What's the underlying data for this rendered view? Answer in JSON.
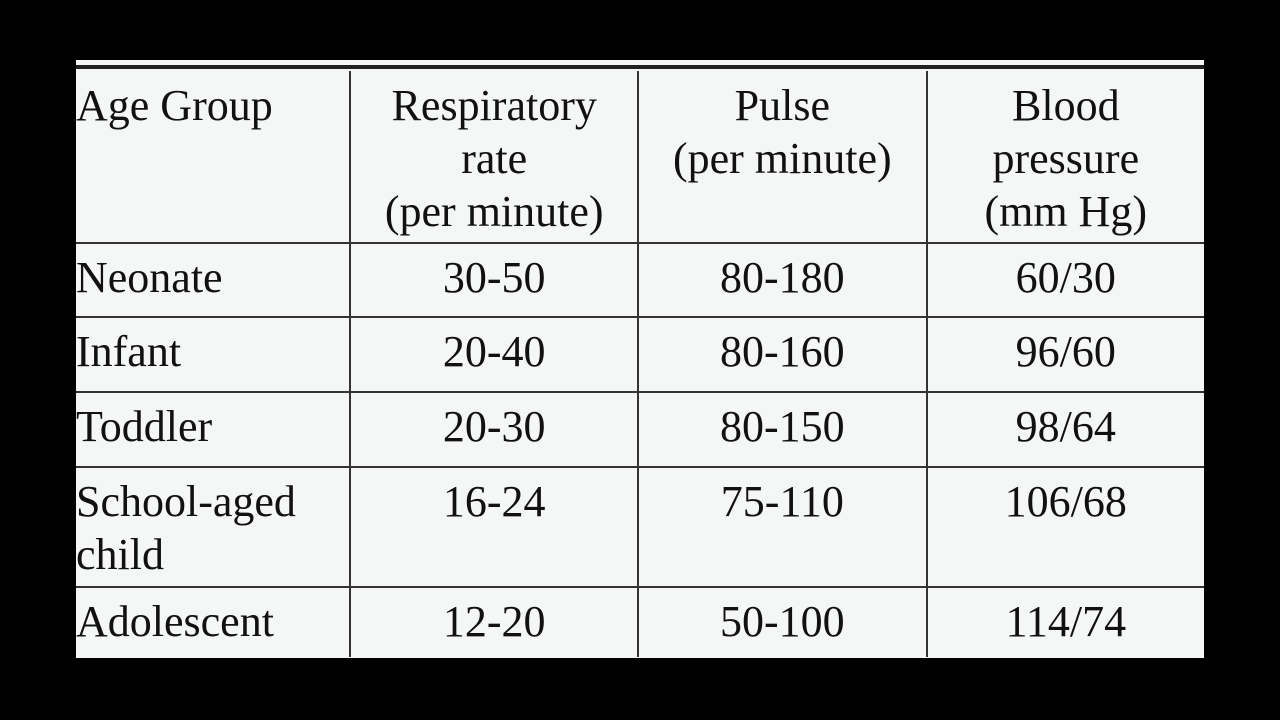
{
  "table": {
    "headers": [
      [
        "Age Group"
      ],
      [
        "Respiratory",
        "rate",
        "(per minute)"
      ],
      [
        "Pulse",
        "(per minute)"
      ],
      [
        "Blood",
        "pressure",
        "(mm Hg)"
      ]
    ],
    "rows": [
      {
        "age_group": [
          "Neonate"
        ],
        "respiratory": "30-50",
        "pulse": "80-180",
        "bp": "60/30"
      },
      {
        "age_group": [
          "Infant"
        ],
        "respiratory": "20-40",
        "pulse": "80-160",
        "bp": "96/60"
      },
      {
        "age_group": [
          "Toddler"
        ],
        "respiratory": "20-30",
        "pulse": "80-150",
        "bp": "98/64"
      },
      {
        "age_group": [
          "School-aged",
          "child"
        ],
        "respiratory": "16-24",
        "pulse": "75-110",
        "bp": "106/68"
      },
      {
        "age_group": [
          "Adolescent"
        ],
        "respiratory": "12-20",
        "pulse": "50-100",
        "bp": "114/74"
      }
    ]
  },
  "colors": {
    "background": "#000000",
    "sheet": "#f5f6f6",
    "text": "#111111",
    "rule": "#333333"
  }
}
